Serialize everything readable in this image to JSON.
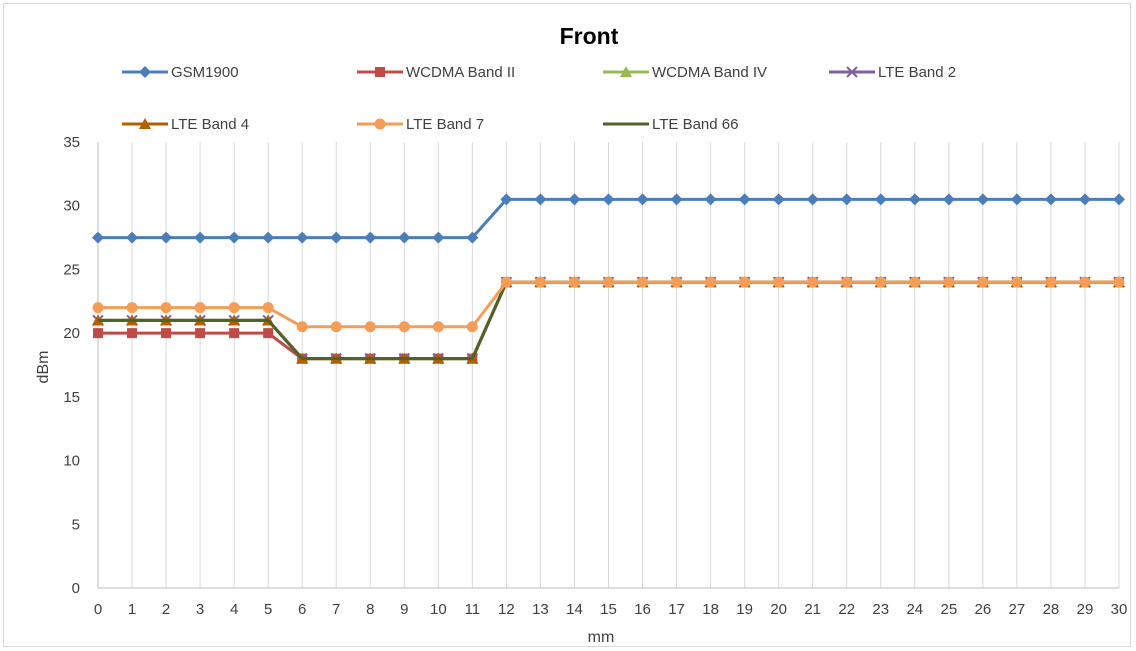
{
  "chart_data": {
    "type": "line",
    "title": "Front",
    "xlabel": "mm",
    "ylabel": "dBm",
    "x": [
      0,
      1,
      2,
      3,
      4,
      5,
      6,
      7,
      8,
      9,
      10,
      11,
      12,
      13,
      14,
      15,
      16,
      17,
      18,
      19,
      20,
      21,
      22,
      23,
      24,
      25,
      26,
      27,
      28,
      29,
      30
    ],
    "ylim": [
      0,
      35
    ],
    "yticks": [
      0,
      5,
      10,
      15,
      20,
      25,
      30,
      35
    ],
    "grid": "vertical",
    "legend_position": "top",
    "series": [
      {
        "name": "GSM1900",
        "color": "#4a7ebb",
        "marker": "diamond",
        "values": [
          27.5,
          27.5,
          27.5,
          27.5,
          27.5,
          27.5,
          27.5,
          27.5,
          27.5,
          27.5,
          27.5,
          27.5,
          30.5,
          30.5,
          30.5,
          30.5,
          30.5,
          30.5,
          30.5,
          30.5,
          30.5,
          30.5,
          30.5,
          30.5,
          30.5,
          30.5,
          30.5,
          30.5,
          30.5,
          30.5,
          30.5
        ]
      },
      {
        "name": "WCDMA Band II",
        "color": "#be4b48",
        "marker": "square",
        "values": [
          20,
          20,
          20,
          20,
          20,
          20,
          18,
          18,
          18,
          18,
          18,
          18,
          24,
          24,
          24,
          24,
          24,
          24,
          24,
          24,
          24,
          24,
          24,
          24,
          24,
          24,
          24,
          24,
          24,
          24,
          24
        ]
      },
      {
        "name": "WCDMA Band IV",
        "color": "#98b954",
        "marker": "triangle",
        "values": [
          21,
          21,
          21,
          21,
          21,
          21,
          18,
          18,
          18,
          18,
          18,
          18,
          24,
          24,
          24,
          24,
          24,
          24,
          24,
          24,
          24,
          24,
          24,
          24,
          24,
          24,
          24,
          24,
          24,
          24,
          24
        ]
      },
      {
        "name": "LTE Band 2",
        "color": "#7d60a0",
        "marker": "x",
        "values": [
          21,
          21,
          21,
          21,
          21,
          21,
          18,
          18,
          18,
          18,
          18,
          18,
          24,
          24,
          24,
          24,
          24,
          24,
          24,
          24,
          24,
          24,
          24,
          24,
          24,
          24,
          24,
          24,
          24,
          24,
          24
        ]
      },
      {
        "name": "LTE Band 4",
        "color": "#b35f00",
        "marker": "triangle",
        "values": [
          21,
          21,
          21,
          21,
          21,
          21,
          18,
          18,
          18,
          18,
          18,
          18,
          24,
          24,
          24,
          24,
          24,
          24,
          24,
          24,
          24,
          24,
          24,
          24,
          24,
          24,
          24,
          24,
          24,
          24,
          24
        ]
      },
      {
        "name": "LTE Band 7",
        "color": "#f59d56",
        "marker": "circle",
        "values": [
          22,
          22,
          22,
          22,
          22,
          22,
          20.5,
          20.5,
          20.5,
          20.5,
          20.5,
          20.5,
          24,
          24,
          24,
          24,
          24,
          24,
          24,
          24,
          24,
          24,
          24,
          24,
          24,
          24,
          24,
          24,
          24,
          24,
          24
        ]
      },
      {
        "name": "LTE Band 66",
        "color": "#4f6228",
        "marker": "none",
        "values": [
          21,
          21,
          21,
          21,
          21,
          21,
          18,
          18,
          18,
          18,
          18,
          18,
          24,
          24,
          24,
          24,
          24,
          24,
          24,
          24,
          24,
          24,
          24,
          24,
          24,
          24,
          24,
          24,
          24,
          24,
          24
        ]
      }
    ]
  }
}
